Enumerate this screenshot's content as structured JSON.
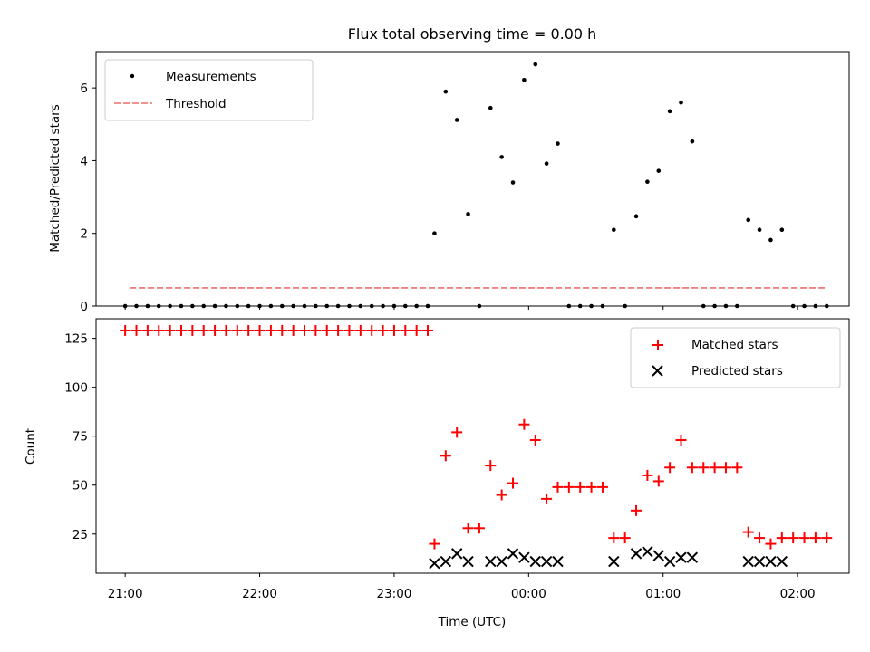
{
  "chart_data": [
    {
      "type": "scatter",
      "title": "Flux total observing time = 0.00 h",
      "xlabel": "",
      "ylabel": "Matched/Predicted stars",
      "xlim": [
        "20:47",
        "02:23"
      ],
      "ylim": [
        0,
        7
      ],
      "yticks": [
        0,
        2,
        4,
        6
      ],
      "grid": false,
      "legend_position": "top-left",
      "series": [
        {
          "name": "Measurements",
          "marker": "dot",
          "color": "#000000",
          "points": [
            [
              "21:00",
              0
            ],
            [
              "21:05",
              0
            ],
            [
              "21:10",
              0
            ],
            [
              "21:15",
              0
            ],
            [
              "21:20",
              0
            ],
            [
              "21:25",
              0
            ],
            [
              "21:30",
              0
            ],
            [
              "21:35",
              0
            ],
            [
              "21:40",
              0
            ],
            [
              "21:45",
              0
            ],
            [
              "21:50",
              0
            ],
            [
              "21:55",
              0
            ],
            [
              "22:00",
              0
            ],
            [
              "22:05",
              0
            ],
            [
              "22:10",
              0
            ],
            [
              "22:15",
              0
            ],
            [
              "22:20",
              0
            ],
            [
              "22:25",
              0
            ],
            [
              "22:30",
              0
            ],
            [
              "22:35",
              0
            ],
            [
              "22:40",
              0
            ],
            [
              "22:45",
              0
            ],
            [
              "22:50",
              0
            ],
            [
              "22:55",
              0
            ],
            [
              "23:00",
              0
            ],
            [
              "23:05",
              0
            ],
            [
              "23:10",
              0
            ],
            [
              "23:15",
              0
            ],
            [
              "23:18",
              2.0
            ],
            [
              "23:23",
              5.9
            ],
            [
              "23:28",
              5.12
            ],
            [
              "23:33",
              2.53
            ],
            [
              "23:38",
              0
            ],
            [
              "23:43",
              5.45
            ],
            [
              "23:48",
              4.1
            ],
            [
              "23:53",
              3.4
            ],
            [
              "23:58",
              6.22
            ],
            [
              "00:03",
              6.65
            ],
            [
              "00:08",
              3.92
            ],
            [
              "00:13",
              4.47
            ],
            [
              "00:18",
              0
            ],
            [
              "00:23",
              0
            ],
            [
              "00:28",
              0
            ],
            [
              "00:33",
              0
            ],
            [
              "00:38",
              2.1
            ],
            [
              "00:43",
              0
            ],
            [
              "00:48",
              2.47
            ],
            [
              "00:53",
              3.42
            ],
            [
              "00:58",
              3.72
            ],
            [
              "01:03",
              5.36
            ],
            [
              "01:08",
              5.6
            ],
            [
              "01:13",
              4.53
            ],
            [
              "01:18",
              0
            ],
            [
              "01:23",
              0
            ],
            [
              "01:28",
              0
            ],
            [
              "01:33",
              0
            ],
            [
              "01:38",
              2.37
            ],
            [
              "01:43",
              2.1
            ],
            [
              "01:48",
              1.82
            ],
            [
              "01:53",
              2.1
            ],
            [
              "01:58",
              0
            ],
            [
              "02:03",
              0
            ],
            [
              "02:08",
              0
            ],
            [
              "02:13",
              0
            ]
          ]
        },
        {
          "name": "Threshold",
          "style": "dashed",
          "color": "#f08080",
          "x": [
            "21:02",
            "02:13"
          ],
          "y": [
            0.5,
            0.5
          ]
        }
      ]
    },
    {
      "type": "scatter",
      "title": "",
      "xlabel": "Time (UTC)",
      "ylabel": "Count",
      "xlim": [
        "20:47",
        "02:23"
      ],
      "ylim": [
        5,
        135
      ],
      "yticks": [
        25,
        50,
        75,
        100,
        125
      ],
      "xticks": [
        "21:00",
        "22:00",
        "23:00",
        "00:00",
        "01:00",
        "02:00"
      ],
      "grid": false,
      "legend_position": "top-right",
      "series": [
        {
          "name": "Matched stars",
          "marker": "plus",
          "color": "#ff0000",
          "points": [
            [
              "21:00",
              129
            ],
            [
              "21:05",
              129
            ],
            [
              "21:10",
              129
            ],
            [
              "21:15",
              129
            ],
            [
              "21:20",
              129
            ],
            [
              "21:25",
              129
            ],
            [
              "21:30",
              129
            ],
            [
              "21:35",
              129
            ],
            [
              "21:40",
              129
            ],
            [
              "21:45",
              129
            ],
            [
              "21:50",
              129
            ],
            [
              "21:55",
              129
            ],
            [
              "22:00",
              129
            ],
            [
              "22:05",
              129
            ],
            [
              "22:10",
              129
            ],
            [
              "22:15",
              129
            ],
            [
              "22:20",
              129
            ],
            [
              "22:25",
              129
            ],
            [
              "22:30",
              129
            ],
            [
              "22:35",
              129
            ],
            [
              "22:40",
              129
            ],
            [
              "22:45",
              129
            ],
            [
              "22:50",
              129
            ],
            [
              "22:55",
              129
            ],
            [
              "23:00",
              129
            ],
            [
              "23:05",
              129
            ],
            [
              "23:10",
              129
            ],
            [
              "23:15",
              129
            ],
            [
              "23:18",
              20
            ],
            [
              "23:23",
              65
            ],
            [
              "23:28",
              77
            ],
            [
              "23:33",
              28
            ],
            [
              "23:38",
              28
            ],
            [
              "23:43",
              60
            ],
            [
              "23:48",
              45
            ],
            [
              "23:53",
              51
            ],
            [
              "23:58",
              81
            ],
            [
              "00:03",
              73
            ],
            [
              "00:08",
              43
            ],
            [
              "00:13",
              49
            ],
            [
              "00:18",
              49
            ],
            [
              "00:23",
              49
            ],
            [
              "00:28",
              49
            ],
            [
              "00:33",
              49
            ],
            [
              "00:38",
              23
            ],
            [
              "00:43",
              23
            ],
            [
              "00:48",
              37
            ],
            [
              "00:53",
              55
            ],
            [
              "00:58",
              52
            ],
            [
              "01:03",
              59
            ],
            [
              "01:08",
              73
            ],
            [
              "01:13",
              59
            ],
            [
              "01:18",
              59
            ],
            [
              "01:23",
              59
            ],
            [
              "01:28",
              59
            ],
            [
              "01:33",
              59
            ],
            [
              "01:38",
              26
            ],
            [
              "01:43",
              23
            ],
            [
              "01:48",
              20
            ],
            [
              "01:53",
              23
            ],
            [
              "01:58",
              23
            ],
            [
              "02:03",
              23
            ],
            [
              "02:08",
              23
            ],
            [
              "02:13",
              23
            ]
          ]
        },
        {
          "name": "Predicted stars",
          "marker": "x",
          "color": "#000000",
          "points": [
            [
              "23:18",
              10
            ],
            [
              "23:23",
              11
            ],
            [
              "23:28",
              15
            ],
            [
              "23:33",
              11
            ],
            [
              "23:43",
              11
            ],
            [
              "23:48",
              11
            ],
            [
              "23:53",
              15
            ],
            [
              "23:58",
              13
            ],
            [
              "00:03",
              11
            ],
            [
              "00:08",
              11
            ],
            [
              "00:13",
              11
            ],
            [
              "00:38",
              11
            ],
            [
              "00:48",
              15
            ],
            [
              "00:53",
              16
            ],
            [
              "00:58",
              14
            ],
            [
              "01:03",
              11
            ],
            [
              "01:08",
              13
            ],
            [
              "01:13",
              13
            ],
            [
              "01:38",
              11
            ],
            [
              "01:43",
              11
            ],
            [
              "01:48",
              11
            ],
            [
              "01:53",
              11
            ]
          ]
        }
      ]
    }
  ]
}
